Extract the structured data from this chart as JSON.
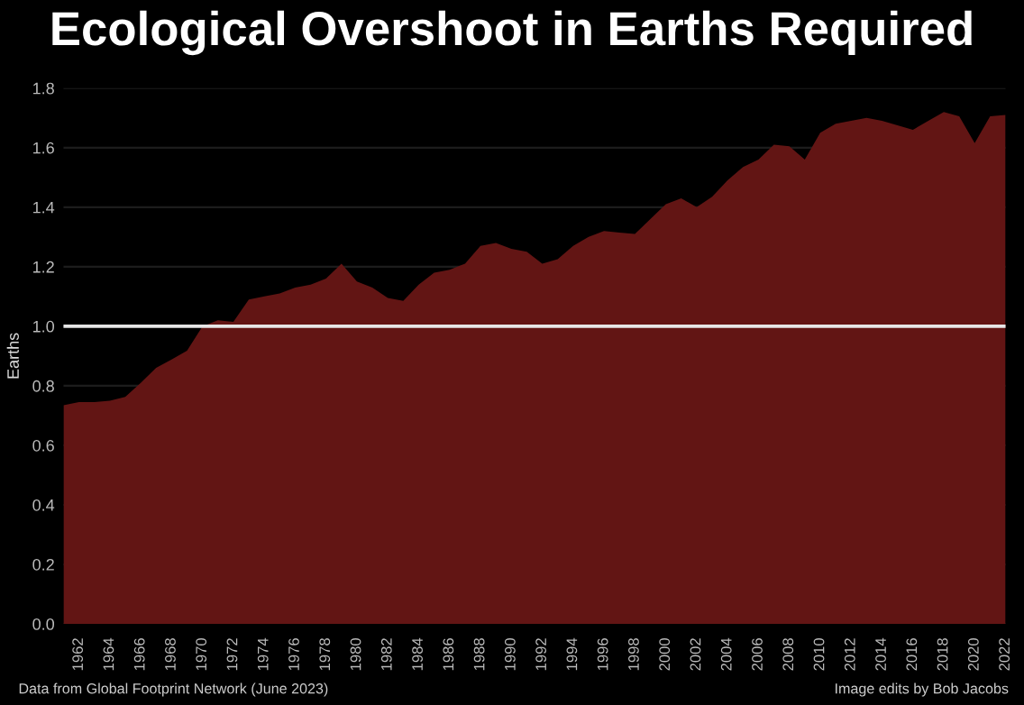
{
  "chart_data": {
    "type": "area",
    "title": "Ecological Overshoot in Earths Required",
    "ylabel": "Earths",
    "x": [
      1961,
      1962,
      1963,
      1964,
      1965,
      1966,
      1967,
      1968,
      1969,
      1970,
      1971,
      1972,
      1973,
      1974,
      1975,
      1976,
      1977,
      1978,
      1979,
      1980,
      1981,
      1982,
      1983,
      1984,
      1985,
      1986,
      1987,
      1988,
      1989,
      1990,
      1991,
      1992,
      1993,
      1994,
      1995,
      1996,
      1997,
      1998,
      1999,
      2000,
      2001,
      2002,
      2003,
      2004,
      2005,
      2006,
      2007,
      2008,
      2009,
      2010,
      2011,
      2012,
      2013,
      2014,
      2015,
      2016,
      2017,
      2018,
      2019,
      2020,
      2021,
      2022
    ],
    "series": [
      {
        "color": "#621514",
        "values": [
          0.735,
          0.745,
          0.745,
          0.75,
          0.763,
          0.81,
          0.86,
          0.888,
          0.918,
          1.0,
          1.02,
          1.015,
          1.09,
          1.1,
          1.11,
          1.13,
          1.14,
          1.16,
          1.21,
          1.15,
          1.13,
          1.095,
          1.085,
          1.14,
          1.18,
          1.19,
          1.21,
          1.27,
          1.28,
          1.26,
          1.25,
          1.21,
          1.225,
          1.27,
          1.3,
          1.32,
          1.315,
          1.31,
          1.36,
          1.41,
          1.43,
          1.4,
          1.435,
          1.49,
          1.535,
          1.56,
          1.61,
          1.605,
          1.56,
          1.65,
          1.68,
          1.69,
          1.7,
          1.69,
          1.675,
          1.66,
          1.69,
          1.72,
          1.705,
          1.615,
          1.705,
          1.71
        ]
      }
    ],
    "xlim": [
      1961,
      2022
    ],
    "xticks": [
      1962,
      1964,
      1966,
      1968,
      1970,
      1972,
      1974,
      1976,
      1978,
      1980,
      1982,
      1984,
      1986,
      1988,
      1990,
      1992,
      1994,
      1996,
      1998,
      2000,
      2002,
      2004,
      2006,
      2008,
      2010,
      2012,
      2014,
      2016,
      2018,
      2020,
      2022
    ],
    "ylim": [
      0,
      1.8
    ],
    "yticks": [
      {
        "value": 0,
        "label": "0.0"
      },
      0.2,
      0.4,
      0.6,
      0.8,
      {
        "value": 1,
        "label": "1.0"
      },
      1.2,
      1.4,
      1.6,
      1.8
    ],
    "ref_lines": [
      {
        "axis": "y",
        "value": 1.0,
        "color": "#e6e6e6"
      }
    ],
    "grid": "y",
    "annotations": [
      "Data from Global Footprint Network (June 2023)",
      "Image edits by Bob Jacobs"
    ]
  }
}
